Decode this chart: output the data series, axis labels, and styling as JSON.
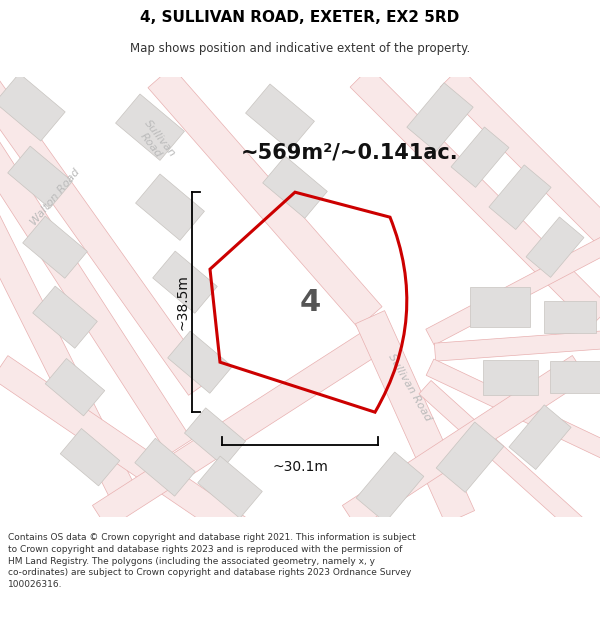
{
  "title": "4, SULLIVAN ROAD, EXETER, EX2 5RD",
  "subtitle": "Map shows position and indicative extent of the property.",
  "area_text": "~569m²/~0.141ac.",
  "width_label": "~30.1m",
  "height_label": "~38.5m",
  "property_number": "4",
  "footer": "Contains OS data © Crown copyright and database right 2021. This information is subject to Crown copyright and database rights 2023 and is reproduced with the permission of HM Land Registry. The polygons (including the associated geometry, namely x, y co-ordinates) are subject to Crown copyright and database rights 2023 Ordnance Survey 100026316.",
  "map_bg": "#f5f3f1",
  "road_fill": "#f9e8e8",
  "road_edge": "#e8b0b0",
  "building_fill": "#e0dedd",
  "building_edge": "#c8c4c0",
  "property_edge": "#cc0000",
  "title_color": "#000000",
  "dim_color": "#111111",
  "label_color": "#bbbbbb",
  "area_color": "#111111",
  "num_color": "#555555"
}
